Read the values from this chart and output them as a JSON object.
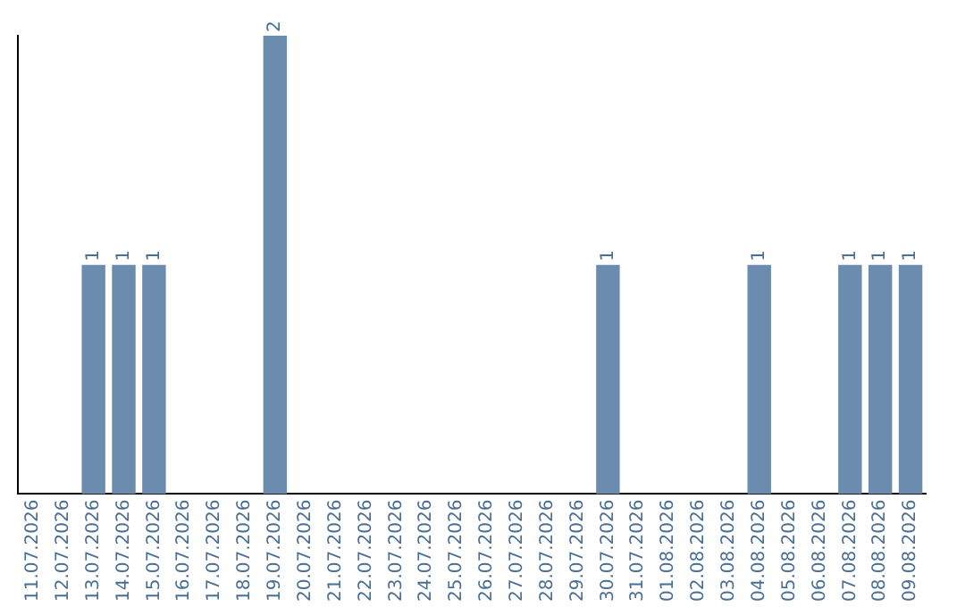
{
  "chart_data": {
    "type": "bar",
    "categories": [
      "11.07.2026",
      "12.07.2026",
      "13.07.2026",
      "14.07.2026",
      "15.07.2026",
      "16.07.2026",
      "17.07.2026",
      "18.07.2026",
      "19.07.2026",
      "20.07.2026",
      "21.07.2026",
      "22.07.2026",
      "23.07.2026",
      "24.07.2026",
      "25.07.2026",
      "26.07.2026",
      "27.07.2026",
      "28.07.2026",
      "29.07.2026",
      "30.07.2026",
      "31.07.2026",
      "01.08.2026",
      "02.08.2026",
      "03.08.2026",
      "04.08.2026",
      "05.08.2026",
      "06.08.2026",
      "07.08.2026",
      "08.08.2026",
      "09.08.2026"
    ],
    "values": [
      0,
      0,
      1,
      1,
      1,
      0,
      0,
      0,
      2,
      0,
      0,
      0,
      0,
      0,
      0,
      0,
      0,
      0,
      0,
      1,
      0,
      0,
      0,
      0,
      1,
      0,
      0,
      1,
      1,
      1
    ],
    "value_labels": [
      null,
      null,
      "1",
      "1",
      "1",
      null,
      null,
      null,
      "2",
      null,
      null,
      null,
      null,
      null,
      null,
      null,
      null,
      null,
      null,
      "1",
      null,
      null,
      null,
      null,
      "1",
      null,
      null,
      "1",
      "1",
      "1"
    ],
    "color": "#6b8cae",
    "grid": false,
    "legend": false,
    "tick_labels": "x"
  }
}
